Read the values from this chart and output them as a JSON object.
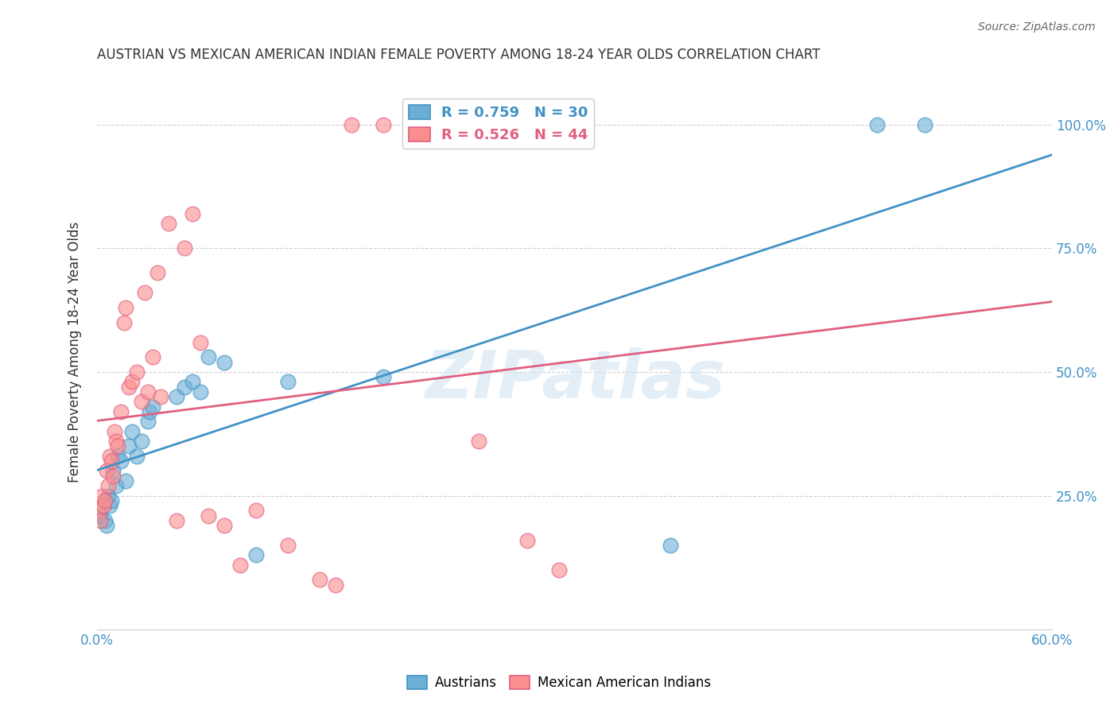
{
  "title": "AUSTRIAN VS MEXICAN AMERICAN INDIAN FEMALE POVERTY AMONG 18-24 YEAR OLDS CORRELATION CHART",
  "source": "Source: ZipAtlas.com",
  "xlabel": "",
  "ylabel": "Female Poverty Among 18-24 Year Olds",
  "xlim": [
    0,
    0.6
  ],
  "ylim": [
    -0.02,
    1.1
  ],
  "xticks": [
    0.0,
    0.1,
    0.2,
    0.3,
    0.4,
    0.5,
    0.6
  ],
  "xticklabels": [
    "0.0%",
    "",
    "",
    "",
    "",
    "",
    "60.0%"
  ],
  "yticks": [
    0.25,
    0.5,
    0.75,
    1.0
  ],
  "yticklabels": [
    "25.0%",
    "50.0%",
    "75.0%",
    "100.0%"
  ],
  "blue_R": 0.759,
  "blue_N": 30,
  "pink_R": 0.526,
  "pink_N": 44,
  "blue_color": "#6baed6",
  "pink_color": "#fc8d8d",
  "blue_line_color": "#4292c6",
  "pink_line_color": "#e06080",
  "legend_blue_label": "Austrians",
  "legend_pink_label": "Mexican American Indians",
  "watermark": "ZIPatlas",
  "blue_x": [
    0.002,
    0.005,
    0.006,
    0.007,
    0.008,
    0.009,
    0.01,
    0.012,
    0.013,
    0.015,
    0.018,
    0.02,
    0.022,
    0.025,
    0.028,
    0.032,
    0.033,
    0.035,
    0.05,
    0.055,
    0.06,
    0.065,
    0.07,
    0.08,
    0.1,
    0.12,
    0.18,
    0.36,
    0.49,
    0.52
  ],
  "blue_y": [
    0.21,
    0.2,
    0.19,
    0.25,
    0.23,
    0.24,
    0.3,
    0.27,
    0.33,
    0.32,
    0.28,
    0.35,
    0.38,
    0.33,
    0.36,
    0.4,
    0.42,
    0.43,
    0.45,
    0.47,
    0.48,
    0.46,
    0.53,
    0.52,
    0.13,
    0.48,
    0.49,
    0.15,
    1.0,
    1.0
  ],
  "pink_x": [
    0.001,
    0.002,
    0.003,
    0.004,
    0.005,
    0.006,
    0.007,
    0.008,
    0.009,
    0.01,
    0.011,
    0.012,
    0.013,
    0.015,
    0.017,
    0.018,
    0.02,
    0.022,
    0.025,
    0.028,
    0.03,
    0.032,
    0.035,
    0.038,
    0.04,
    0.045,
    0.05,
    0.055,
    0.06,
    0.065,
    0.07,
    0.08,
    0.09,
    0.1,
    0.12,
    0.14,
    0.15,
    0.16,
    0.18,
    0.2,
    0.22,
    0.24,
    0.27,
    0.29
  ],
  "pink_y": [
    0.22,
    0.2,
    0.25,
    0.23,
    0.24,
    0.3,
    0.27,
    0.33,
    0.32,
    0.29,
    0.38,
    0.36,
    0.35,
    0.42,
    0.6,
    0.63,
    0.47,
    0.48,
    0.5,
    0.44,
    0.66,
    0.46,
    0.53,
    0.7,
    0.45,
    0.8,
    0.2,
    0.75,
    0.82,
    0.56,
    0.21,
    0.19,
    0.11,
    0.22,
    0.15,
    0.08,
    0.07,
    1.0,
    1.0,
    1.0,
    1.0,
    0.36,
    0.16,
    0.1
  ]
}
